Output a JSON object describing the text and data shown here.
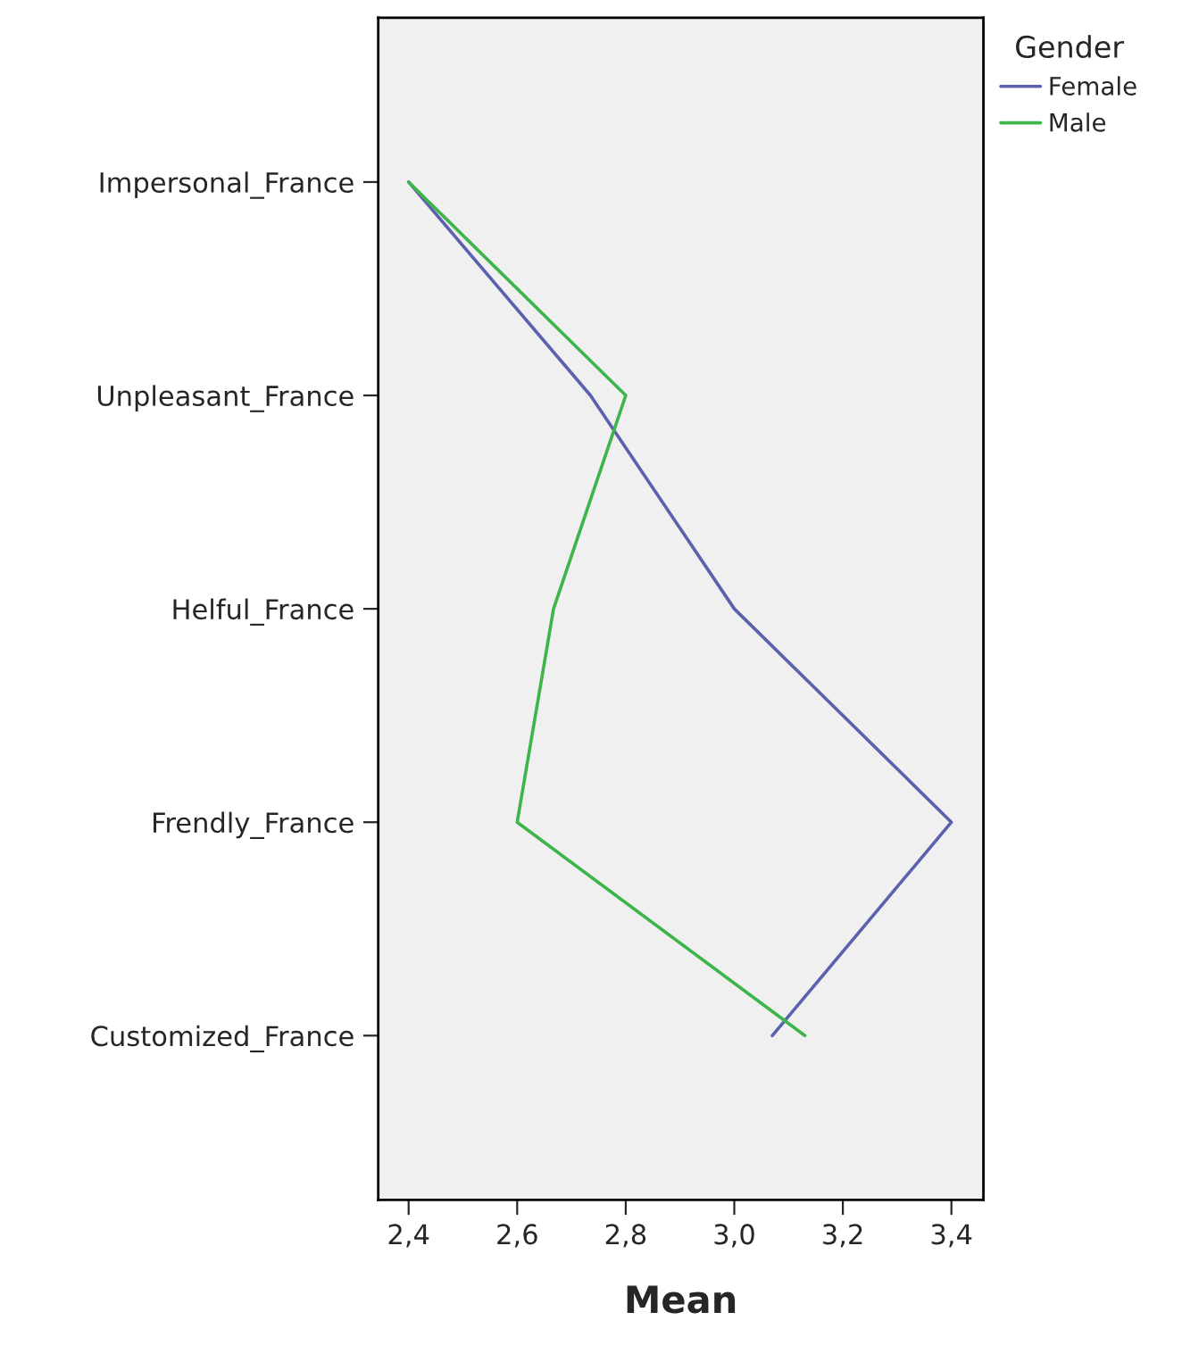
{
  "chart_data": {
    "type": "line",
    "orientation": "horizontal",
    "xlabel": "Mean",
    "legend_title": "Gender",
    "legend": "top right",
    "categories": [
      "Impersonal_France",
      "Unpleasant_France",
      "Helful_France",
      "Frendly_France",
      "Customized_France"
    ],
    "series": [
      {
        "name": "Female",
        "color": "#5a62ad",
        "values": [
          2.4,
          2.735,
          3.0,
          3.4,
          3.07
        ]
      },
      {
        "name": "Male",
        "color": "#3db54a",
        "values": [
          2.4,
          2.8,
          2.667,
          2.6,
          3.13
        ]
      }
    ],
    "xlim": [
      2.344,
      3.459
    ],
    "xticks": [
      {
        "value": 2.4,
        "label": "2,4"
      },
      {
        "value": 2.6,
        "label": "2,6"
      },
      {
        "value": 2.8,
        "label": "2,8"
      },
      {
        "value": 3.0,
        "label": "3,0"
      },
      {
        "value": 3.2,
        "label": "3,2"
      },
      {
        "value": 3.4,
        "label": "3,4"
      }
    ],
    "grid": false,
    "marker": "none",
    "line_style": "solid"
  }
}
